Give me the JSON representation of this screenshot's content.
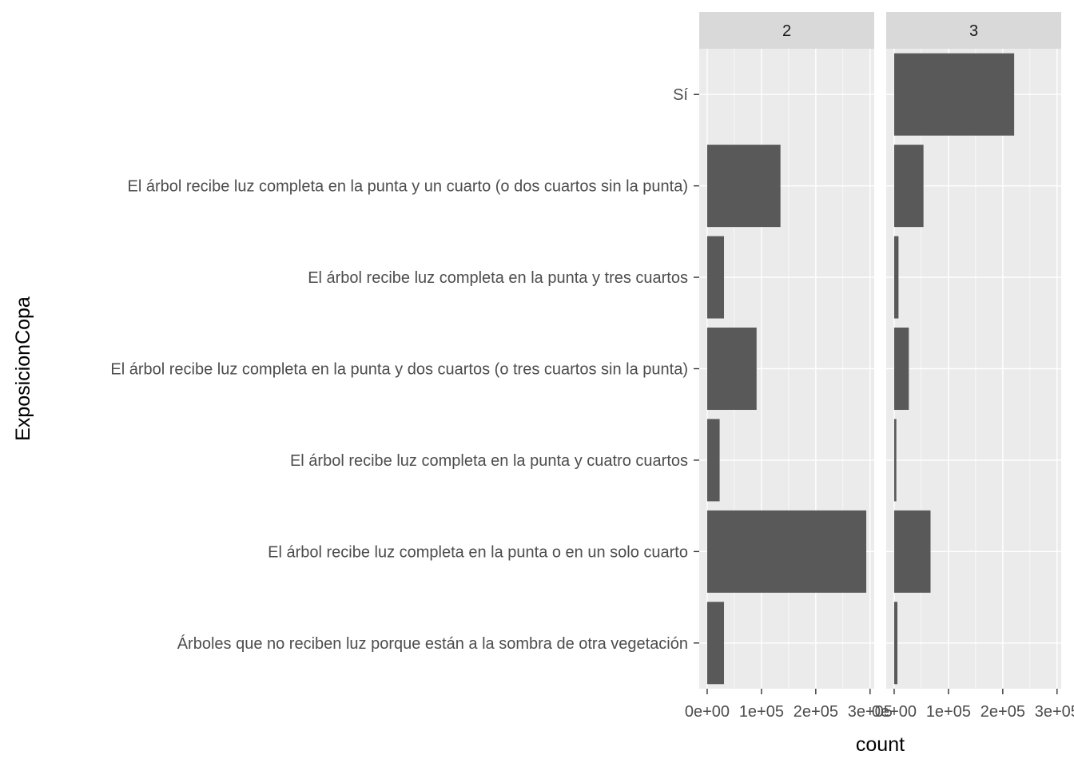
{
  "chart_data": {
    "type": "bar",
    "orientation": "horizontal",
    "facet_variable_values": [
      "2",
      "3"
    ],
    "categories": [
      "Sí",
      "El árbol recibe luz completa en la punta y un cuarto (o dos cuartos sin la punta)",
      "El árbol recibe luz completa en la punta y tres cuartos",
      "El árbol recibe luz completa en la punta y dos cuartos (o tres cuartos sin la punta)",
      "El árbol recibe luz completa en la punta y cuatro cuartos",
      "El árbol recibe luz completa en la punta o en un solo cuarto",
      "Árboles que no reciben luz porque están a la sombra de otra vegetación"
    ],
    "series": [
      {
        "facet": "2",
        "values": [
          0,
          135000,
          31000,
          91000,
          23000,
          293000,
          31000
        ]
      },
      {
        "facet": "3",
        "values": [
          221000,
          54000,
          8000,
          27000,
          4000,
          67000,
          6000
        ]
      }
    ],
    "x_ticks": [
      0,
      100000,
      200000,
      300000
    ],
    "x_tick_labels": [
      "0e+00",
      "1e+05",
      "2e+05",
      "3e+05"
    ],
    "xlim": [
      -14650,
      307650
    ],
    "xlabel": "count",
    "ylabel": "ExposicionCopa",
    "title": "",
    "grid": true,
    "legend": "none",
    "colors": {
      "bar": "#595959",
      "panel_background": "#ebebeb",
      "grid_major": "#ffffff",
      "strip_background": "#d9d9d9",
      "tick": "#333333"
    }
  }
}
